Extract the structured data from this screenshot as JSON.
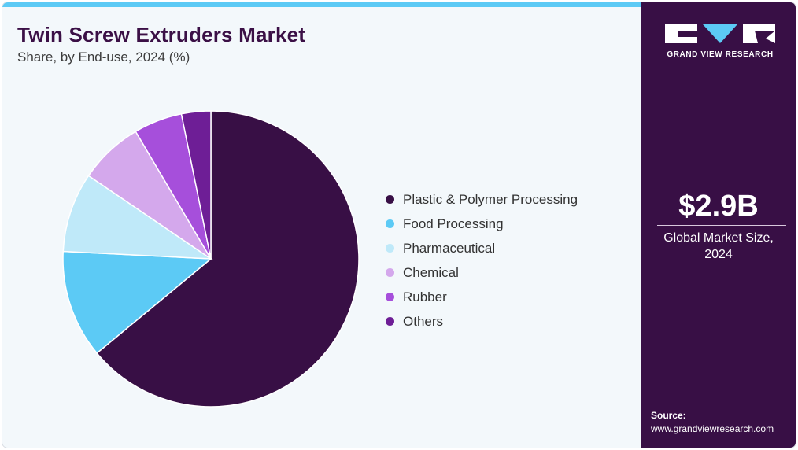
{
  "header": {
    "title": "Twin Screw Extruders Market",
    "subtitle": "Share, by End-use, 2024 (%)"
  },
  "colors": {
    "accent_bar": "#5ccaf5",
    "sidebar_bg": "#380f45",
    "title": "#3b1046"
  },
  "chart_data": {
    "type": "pie",
    "title": "Twin Screw Extruders Market",
    "subtitle": "Share, by End-use, 2024 (%)",
    "legend_position": "right",
    "categories": [
      "Plastic & Polymer Processing",
      "Food Processing",
      "Pharmaceutical",
      "Chemical",
      "Rubber",
      "Others"
    ],
    "values": [
      64.0,
      11.8,
      8.7,
      7.0,
      5.3,
      3.2
    ],
    "colors": [
      "#380f45",
      "#5ccaf5",
      "#bfe9f9",
      "#d4a8ec",
      "#a64fdb",
      "#6e1e96"
    ]
  },
  "sidebar": {
    "logo_text": "GRAND VIEW RESEARCH",
    "logo_icon": "gvr-logo-icon",
    "market_value": "$2.9B",
    "market_label": "Global Market Size, 2024",
    "source_label": "Source:",
    "source_url": "www.grandviewresearch.com"
  }
}
